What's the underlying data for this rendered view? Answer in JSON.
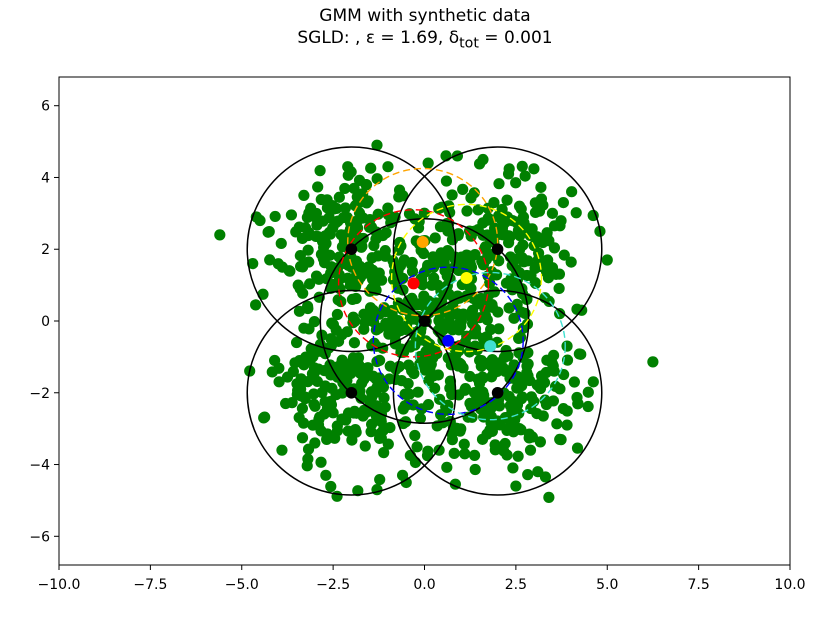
{
  "chart_data": {
    "type": "scatter",
    "title": "GMM with synthetic data",
    "subtitle": "SGLD: , ε = 1.69, δ",
    "subtitle_subscript": "tot",
    "subtitle_tail": " = 0.001",
    "xlabel": "",
    "ylabel": "",
    "xlim": [
      -10,
      10
    ],
    "ylim": [
      -6.8,
      6.8
    ],
    "xticks": [
      -10.0,
      -7.5,
      -5.0,
      -2.5,
      0.0,
      2.5,
      5.0,
      7.5,
      10.0
    ],
    "xtick_labels": [
      "−10.0",
      "−7.5",
      "−5.0",
      "−2.5",
      "0.0",
      "2.5",
      "5.0",
      "7.5",
      "10.0"
    ],
    "yticks": [
      -6,
      -4,
      -2,
      0,
      2,
      4,
      6
    ],
    "ytick_labels": [
      "−6",
      "−4",
      "−2",
      "0",
      "2",
      "4",
      "6"
    ],
    "grid": false,
    "colors": {
      "data_points": "#008000",
      "true_components": "#000000"
    },
    "data_series": {
      "name": "",
      "color": "#008000",
      "approx_count": 1000,
      "points": [
        [
          -5.6,
          2.4
        ],
        [
          -4.7,
          1.6
        ],
        [
          -4.6,
          2.9
        ],
        [
          -4.5,
          2.8
        ],
        [
          -4.4,
          -2.7
        ],
        [
          -1.3,
          4.9
        ],
        [
          0.9,
          4.6
        ],
        [
          4.8,
          2.5
        ],
        [
          5.0,
          1.7
        ],
        [
          4.3,
          0.3
        ],
        [
          4.1,
          -1.7
        ],
        [
          3.9,
          -2.9
        ],
        [
          3.7,
          -3.3
        ],
        [
          2.5,
          -4.6
        ],
        [
          -1.3,
          -4.7
        ],
        [
          -0.5,
          -4.5
        ],
        [
          -0.6,
          -4.3
        ],
        [
          1.1,
          -3.7
        ],
        [
          3.1,
          -4.2
        ],
        [
          4.2,
          -2.3
        ],
        [
          -3.9,
          -3.6
        ],
        [
          -3.4,
          0.9
        ],
        [
          -3.7,
          1.4
        ],
        [
          -3.3,
          3.5
        ],
        [
          -2.1,
          4.3
        ],
        [
          -1.0,
          4.3
        ],
        [
          0.1,
          4.4
        ],
        [
          1.6,
          4.5
        ],
        [
          2.3,
          4.1
        ],
        [
          3.2,
          3.4
        ],
        [
          3.5,
          3.0
        ],
        [
          3.8,
          3.3
        ],
        [
          3.6,
          1.3
        ],
        [
          3.9,
          -0.7
        ],
        [
          3.5,
          -1.2
        ],
        [
          2.9,
          -3.6
        ],
        [
          0.4,
          -3.6
        ],
        [
          -2.7,
          -4.3
        ],
        [
          -3.0,
          -3.4
        ],
        [
          -3.8,
          -2.3
        ],
        [
          -4.1,
          -1.1
        ],
        [
          -3.5,
          -0.6
        ],
        [
          -3.3,
          -0.2
        ],
        [
          -3.0,
          2.9
        ],
        [
          -1.6,
          3.8
        ],
        [
          0.6,
          3.9
        ],
        [
          1.9,
          3.3
        ],
        [
          2.6,
          3.2
        ],
        [
          3.0,
          2.1
        ],
        [
          2.8,
          0.6
        ]
      ]
    },
    "true_components": {
      "means": [
        [
          -2,
          2
        ],
        [
          2,
          2
        ],
        [
          0,
          0
        ],
        [
          -2,
          -2
        ],
        [
          2,
          -2
        ]
      ],
      "radius": 2.85,
      "color": "#000000",
      "line_style": "solid"
    },
    "estimated_components": [
      {
        "mean": [
          -0.3,
          1.05
        ],
        "radius": 2.05,
        "color": "#ff0000",
        "line_style": "dashed"
      },
      {
        "mean": [
          -0.05,
          2.2
        ],
        "radius": 2.05,
        "color": "#ffa500",
        "line_style": "dashed"
      },
      {
        "mean": [
          1.15,
          1.2
        ],
        "radius": 2.05,
        "color": "#ffff00",
        "line_style": "dashed"
      },
      {
        "mean": [
          0.65,
          -0.55
        ],
        "radius": 2.05,
        "color": "#0000ff",
        "line_style": "dashed"
      },
      {
        "mean": [
          1.8,
          -0.7
        ],
        "radius": 2.05,
        "color": "#40e0d0",
        "line_style": "dashed"
      }
    ]
  }
}
